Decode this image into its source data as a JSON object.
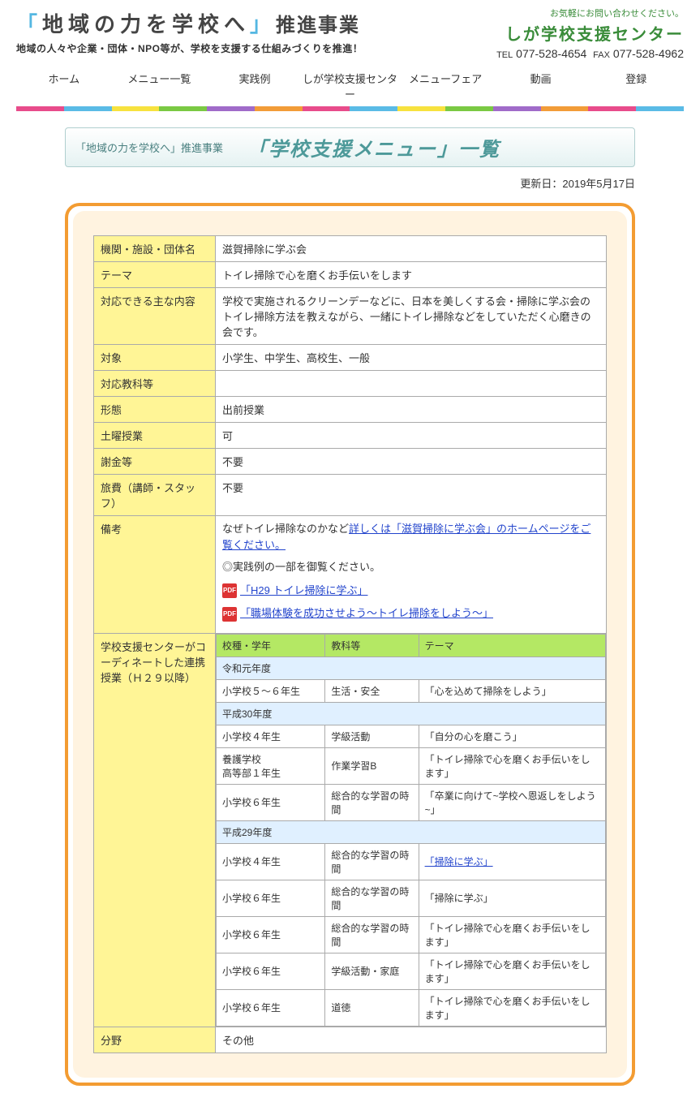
{
  "header": {
    "title_prefix": "「",
    "title_main": "地域の力を学校へ",
    "title_suffix_bracket": "」",
    "title_suffix": "推進事業",
    "subtitle": "地域の人々や企業・団体・NPO等が、学校を支援する仕組みづくりを推進！",
    "contact_prompt": "お気軽にお問い合わせください。",
    "center_name": "しが学校支援センター",
    "tel_label": "TEL",
    "tel": "077-528-4654",
    "fax_label": "FAX",
    "fax": "077-528-4962"
  },
  "nav": [
    "ホーム",
    "メニュー一覧",
    "実践例",
    "しが学校支援センター",
    "メニューフェア",
    "動画",
    "登録"
  ],
  "rainbow_colors": [
    "#e84c8b",
    "#5abbe6",
    "#f7e23e",
    "#7ac943",
    "#a06bc9",
    "#f29c38",
    "#e84c8b",
    "#5abbe6",
    "#f7e23e",
    "#7ac943",
    "#a06bc9",
    "#f29c38",
    "#e84c8b",
    "#5abbe6"
  ],
  "page_title": {
    "small": "「地域の力を学校へ」推進事業",
    "large": "「学校支援メニュー」一覧"
  },
  "update_date": "更新日：2019年5月17日",
  "rows": [
    {
      "label": "機関・施設・団体名",
      "value": "滋賀掃除に学ぶ会"
    },
    {
      "label": "テーマ",
      "value": "トイレ掃除で心を磨くお手伝いをします"
    },
    {
      "label": "対応できる主な内容",
      "value": "学校で実施されるクリーンデーなどに、日本を美しくする会・掃除に学ぶ会のトイレ掃除方法を教えながら、一緒にトイレ掃除などをしていただく心磨きの会です。"
    },
    {
      "label": "対象",
      "value": "小学生、中学生、高校生、一般"
    },
    {
      "label": "対応教科等",
      "value": ""
    },
    {
      "label": "形態",
      "value": "出前授業"
    },
    {
      "label": "土曜授業",
      "value": "可"
    },
    {
      "label": "謝金等",
      "value": "不要"
    },
    {
      "label": "旅費（講師・スタッフ）",
      "value": "不要"
    }
  ],
  "remarks": {
    "label": "備考",
    "text1": "なぜトイレ掃除なのかなど",
    "link1": "詳しくは「滋賀掃除に学ぶ会」のホームページをご覧ください。",
    "text2": "◎実践例の一部を御覧ください。",
    "pdf1": "「H29 トイレ掃除に学ぶ」",
    "pdf2": "「職場体験を成功させよう〜トイレ掃除をしよう〜」"
  },
  "coord": {
    "label": "学校支援センターがコーディネートした連携授業（Ｈ２９以降）",
    "headers": [
      "校種・学年",
      "教科等",
      "テーマ"
    ],
    "sections": [
      {
        "year": "令和元年度",
        "rows": [
          {
            "c1": "小学校５〜６年生",
            "c2": "生活・安全",
            "c3": "「心を込めて掃除をしよう」"
          }
        ]
      },
      {
        "year": "平成30年度",
        "rows": [
          {
            "c1": "小学校４年生",
            "c2": "学級活動",
            "c3": "「自分の心を磨こう」"
          },
          {
            "c1": "養護学校\n高等部１年生",
            "c2": "作業学習B",
            "c3": "「トイレ掃除で心を磨くお手伝いをします」"
          },
          {
            "c1": "小学校６年生",
            "c2": "総合的な学習の時間",
            "c3": "「卒業に向けて~学校へ恩返しをしよう~」"
          }
        ]
      },
      {
        "year": "平成29年度",
        "rows": [
          {
            "c1": "小学校４年生",
            "c2": "総合的な学習の時間",
            "c3": "「掃除に学ぶ」",
            "link": true
          },
          {
            "c1": "小学校６年生",
            "c2": "総合的な学習の時間",
            "c3": "「掃除に学ぶ」"
          },
          {
            "c1": "小学校６年生",
            "c2": "総合的な学習の時間",
            "c3": "「トイレ掃除で心を磨くお手伝いをします」"
          },
          {
            "c1": "小学校６年生",
            "c2": "学級活動・家庭",
            "c3": "「トイレ掃除で心を磨くお手伝いをします」"
          },
          {
            "c1": "小学校６年生",
            "c2": "道徳",
            "c3": "「トイレ掃除で心を磨くお手伝いをします」"
          }
        ]
      }
    ]
  },
  "field": {
    "label": "分野",
    "value": "その他"
  }
}
